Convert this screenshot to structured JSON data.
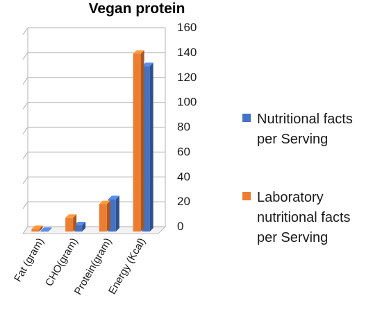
{
  "chart_data": {
    "type": "bar",
    "title": "Vegan protein",
    "categories": [
      "Fat (gram)",
      "CHO(gram)",
      "Protein(gram)",
      "Energy (Kcal)"
    ],
    "series": [
      {
        "name": "Laboratory nutritional facts per Serving",
        "legend_lines": [
          "Laboratory",
          "nutritional facts",
          "per Serving"
        ],
        "color": "#ED7D31",
        "values": [
          2,
          11,
          22,
          143
        ]
      },
      {
        "name": "Nutritional facts per Serving",
        "legend_lines": [
          "Nutritional facts",
          "per Serving"
        ],
        "color": "#4472C4",
        "values": [
          0.5,
          5,
          26,
          133
        ]
      }
    ],
    "ylim": [
      0,
      160
    ],
    "yticks": [
      "0",
      "20",
      "40",
      "60",
      "80",
      "100",
      "120",
      "140",
      "160"
    ],
    "grid": true,
    "legend_position": "right",
    "style": "3d-column"
  }
}
